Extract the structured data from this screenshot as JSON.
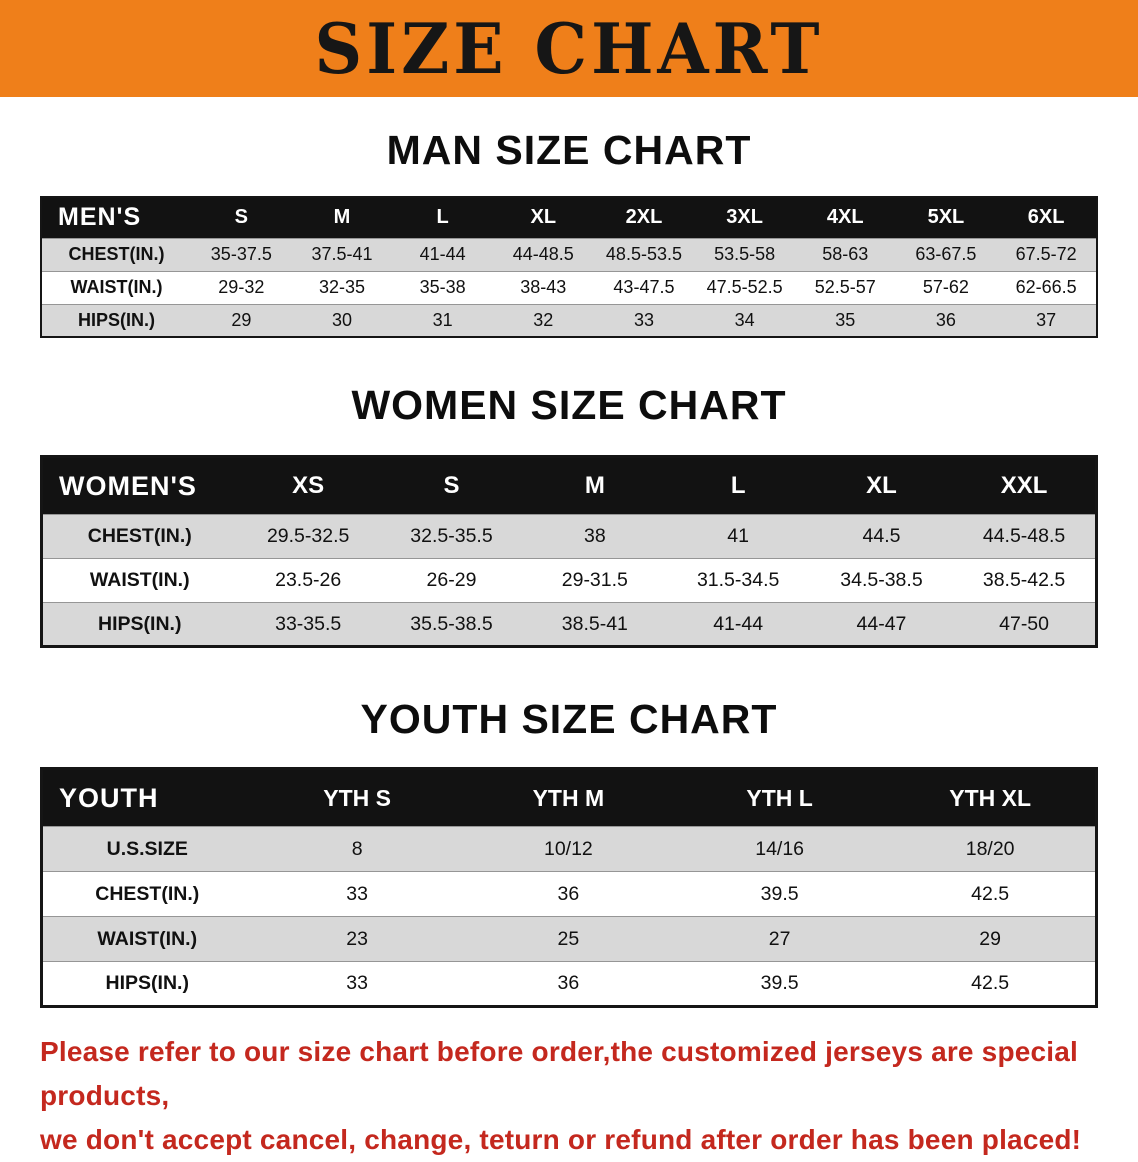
{
  "banner": {
    "title": "SIZE CHART"
  },
  "colors": {
    "banner_bg": "#ef7f1a",
    "table_header_bg": "#121212",
    "row_stripe": "#d8d8d8",
    "footnote_text": "#c4281e"
  },
  "sections": [
    {
      "heading": "MAN SIZE CHART",
      "table": {
        "header": [
          "MEN'S",
          "S",
          "M",
          "L",
          "XL",
          "2XL",
          "3XL",
          "4XL",
          "5XL",
          "6XL"
        ],
        "rows": [
          [
            "CHEST(IN.)",
            "35-37.5",
            "37.5-41",
            "41-44",
            "44-48.5",
            "48.5-53.5",
            "53.5-58",
            "58-63",
            "63-67.5",
            "67.5-72"
          ],
          [
            "WAIST(IN.)",
            "29-32",
            "32-35",
            "35-38",
            "38-43",
            "43-47.5",
            "47.5-52.5",
            "52.5-57",
            "57-62",
            "62-66.5"
          ],
          [
            "HIPS(IN.)",
            "29",
            "30",
            "31",
            "32",
            "33",
            "34",
            "35",
            "36",
            "37"
          ]
        ]
      }
    },
    {
      "heading": "WOMEN SIZE CHART",
      "table": {
        "header": [
          "WOMEN'S",
          "XS",
          "S",
          "M",
          "L",
          "XL",
          "XXL"
        ],
        "rows": [
          [
            "CHEST(IN.)",
            "29.5-32.5",
            "32.5-35.5",
            "38",
            "41",
            "44.5",
            "44.5-48.5"
          ],
          [
            "WAIST(IN.)",
            "23.5-26",
            "26-29",
            "29-31.5",
            "31.5-34.5",
            "34.5-38.5",
            "38.5-42.5"
          ],
          [
            "HIPS(IN.)",
            "33-35.5",
            "35.5-38.5",
            "38.5-41",
            "41-44",
            "44-47",
            "47-50"
          ]
        ]
      }
    },
    {
      "heading": "YOUTH SIZE CHART",
      "table": {
        "header": [
          "YOUTH",
          "YTH S",
          "YTH M",
          "YTH L",
          "YTH XL"
        ],
        "rows": [
          [
            "U.S.SIZE",
            "8",
            "10/12",
            "14/16",
            "18/20"
          ],
          [
            "CHEST(IN.)",
            "33",
            "36",
            "39.5",
            "42.5"
          ],
          [
            "WAIST(IN.)",
            "23",
            "25",
            "27",
            "29"
          ],
          [
            "HIPS(IN.)",
            "33",
            "36",
            "39.5",
            "42.5"
          ]
        ]
      }
    }
  ],
  "footnote": {
    "line1": "Please refer to our size chart before order,the customized jerseys are special products,",
    "line2": "we don't accept cancel, change, teturn or refund after order has been placed!"
  }
}
